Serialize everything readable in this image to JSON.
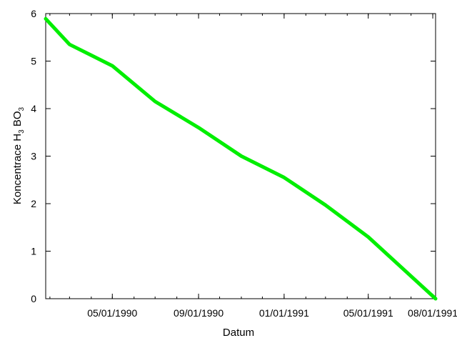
{
  "chart_data": {
    "type": "line",
    "title": "",
    "xlabel": "Datum",
    "ylabel": {
      "prefix": "Koncentrace H",
      "sub1": "3",
      "middle": " BO",
      "sub2": "3"
    },
    "x_tick_labels": [
      "05/01/1990",
      "09/01/1990",
      "01/01/1991",
      "05/01/1991",
      "08/01/1991"
    ],
    "x_tick_dates": [
      "1990-05-01",
      "1990-09-01",
      "1991-01-01",
      "1991-05-01",
      "1991-08-01"
    ],
    "xlim": [
      "1990-01-26",
      "1991-08-05"
    ],
    "ylim": [
      0,
      6
    ],
    "y_ticks": [
      0,
      1,
      2,
      3,
      4,
      5,
      6
    ],
    "grid": false,
    "legend": "none",
    "series": [
      {
        "color": "#00ee00",
        "points": [
          {
            "x": "1990-01-26",
            "y": 5.89
          },
          {
            "x": "1990-03-01",
            "y": 5.35
          },
          {
            "x": "1990-05-01",
            "y": 4.9
          },
          {
            "x": "1990-07-01",
            "y": 4.15
          },
          {
            "x": "1990-09-01",
            "y": 3.6
          },
          {
            "x": "1990-11-01",
            "y": 3.0
          },
          {
            "x": "1991-01-01",
            "y": 2.55
          },
          {
            "x": "1991-03-01",
            "y": 1.97
          },
          {
            "x": "1991-05-01",
            "y": 1.3
          },
          {
            "x": "1991-08-05",
            "y": 0.0
          }
        ]
      }
    ]
  }
}
